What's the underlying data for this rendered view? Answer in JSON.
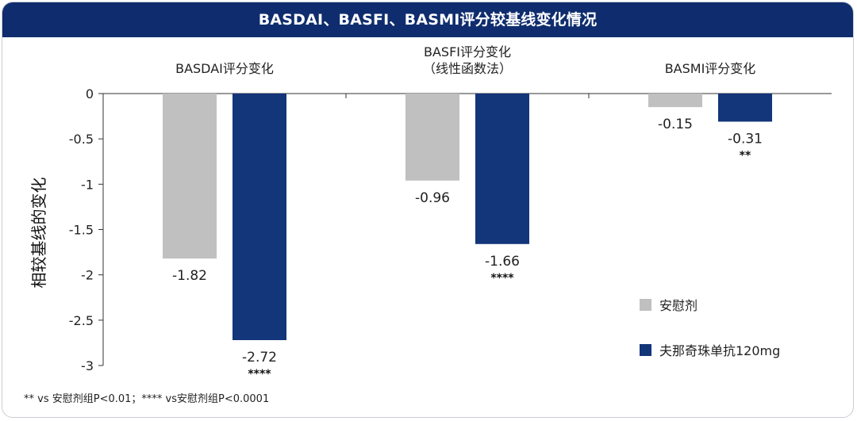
{
  "header": {
    "title": "BASDAI、BASFI、BASMI评分较基线变化情况"
  },
  "footnote": "** vs 安慰剂组P<0.01；**** vs安慰剂组P<0.0001",
  "colors": {
    "placebo": "#c0c0c0",
    "drug": "#133579",
    "header_bg": "#0f2d6e"
  },
  "chart_data": {
    "type": "bar",
    "ylabel": "相较基线的变化",
    "ylim": [
      -3,
      0
    ],
    "yticks": [
      0,
      -0.5,
      -1,
      -1.5,
      -2,
      -2.5,
      -3
    ],
    "ytick_labels": [
      "0",
      "-0.5",
      "-1",
      "-1.5",
      "-2",
      "-2.5",
      "-3"
    ],
    "categories": [
      "BASDAI评分变化",
      "BASFI评分变化\n（线性函数法）",
      "BASMI评分变化"
    ],
    "category_label_lines": [
      [
        "BASDAI评分变化"
      ],
      [
        "BASFI评分变化",
        "（线性函数法）"
      ],
      [
        "BASMI评分变化"
      ]
    ],
    "series": [
      {
        "name": "安慰剂",
        "values": [
          -1.82,
          -0.96,
          -0.15
        ],
        "value_labels": [
          "-1.82",
          "-0.96",
          "-0.15"
        ],
        "significance": [
          "",
          "",
          ""
        ]
      },
      {
        "name": "夫那奇珠单抗120mg",
        "values": [
          -2.72,
          -1.66,
          -0.31
        ],
        "value_labels": [
          "-2.72",
          "-1.66",
          "-0.31"
        ],
        "significance": [
          "****",
          "****",
          "**"
        ]
      }
    ],
    "legend_position": "right",
    "grid": false
  }
}
